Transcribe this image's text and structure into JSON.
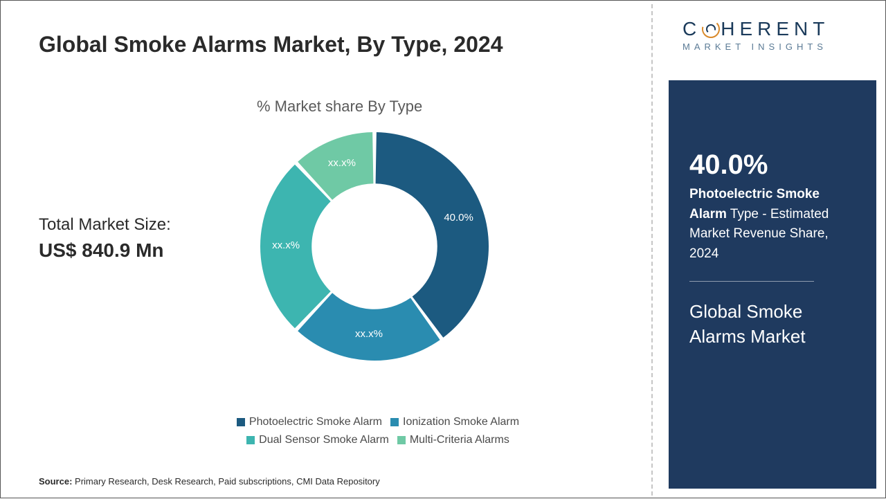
{
  "title": "Global Smoke Alarms Market, By Type, 2024",
  "subtitle": "% Market share By Type",
  "market_size": {
    "label": "Total Market Size:",
    "value": "US$ 840.9 Mn"
  },
  "chart": {
    "type": "donut",
    "inner_radius_ratio": 0.55,
    "background_color": "#ffffff",
    "gap_color": "#ffffff",
    "slices": [
      {
        "name": "Photoelectric Smoke Alarm",
        "value": 40.0,
        "label": "40.0%",
        "color": "#1c5a80"
      },
      {
        "name": "Ionization Smoke Alarm",
        "value": 22.0,
        "label": "xx.x%",
        "color": "#2a8cb0"
      },
      {
        "name": "Dual Sensor Smoke Alarm",
        "value": 26.0,
        "label": "xx.x%",
        "color": "#3db5b0"
      },
      {
        "name": "Multi-Criteria Alarms",
        "value": 12.0,
        "label": "xx.x%",
        "color": "#6fc9a5"
      }
    ],
    "label_fontsize": 15,
    "label_color": "#ffffff"
  },
  "legend": {
    "fontsize": 16,
    "text_color": "#4a4a4a",
    "rows": [
      [
        "Photoelectric Smoke Alarm",
        "Ionization Smoke Alarm"
      ],
      [
        "Dual Sensor Smoke Alarm",
        "Multi-Criteria Alarms"
      ]
    ]
  },
  "source": {
    "label": "Source:",
    "text": "Primary Research, Desk Research, Paid subscriptions, CMI Data Repository"
  },
  "logo": {
    "line1_a": "C",
    "line1_b": "HERENT",
    "line2": "MARKET INSIGHTS",
    "o_outer": "#d98a2b",
    "o_inner": "#1a3a5a"
  },
  "info_box": {
    "background": "#1f3a5f",
    "pct": "40.0%",
    "desc_bold": "Photoelectric Smoke Alarm",
    "desc_rest": " Type - Estimated Market Revenue Share, 2024",
    "market_name": "Global Smoke Alarms Market"
  }
}
